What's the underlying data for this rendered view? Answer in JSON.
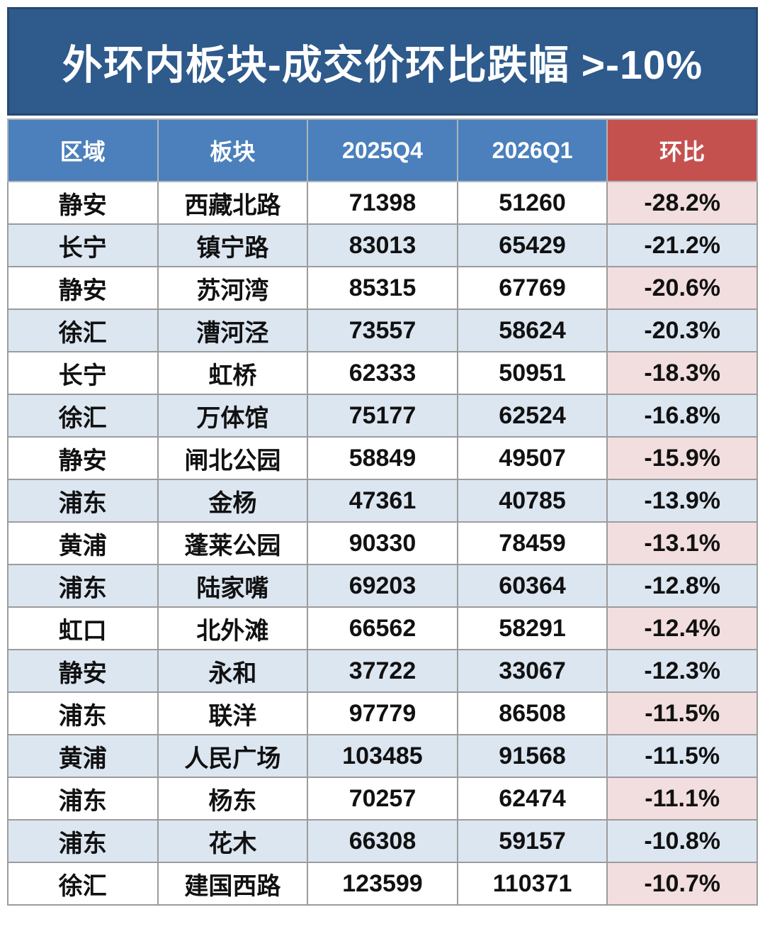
{
  "title": "外环内板块-成交价环比跌幅 >-10%",
  "colors": {
    "title_bg": "#2E5A8C",
    "title_border": "#27496F",
    "header_blue": "#4C80BC",
    "header_red": "#C5514F",
    "row_white": "#FFFFFF",
    "row_alt_blue": "#DCE6F1",
    "qoq_pink": "#F2DEDE",
    "cell_border": "#9C9C9C",
    "text_dark": "#111111",
    "text_white": "#FFFFFF"
  },
  "chart_data": {
    "type": "table",
    "title": "外环内板块-成交价环比跌幅 >-10%",
    "columns": [
      "区域",
      "板块",
      "2025Q4",
      "2026Q1",
      "环比"
    ],
    "rows": [
      [
        "静安",
        "西藏北路",
        "71398",
        "51260",
        "-28.2%"
      ],
      [
        "长宁",
        "镇宁路",
        "83013",
        "65429",
        "-21.2%"
      ],
      [
        "静安",
        "苏河湾",
        "85315",
        "67769",
        "-20.6%"
      ],
      [
        "徐汇",
        "漕河泾",
        "73557",
        "58624",
        "-20.3%"
      ],
      [
        "长宁",
        "虹桥",
        "62333",
        "50951",
        "-18.3%"
      ],
      [
        "徐汇",
        "万体馆",
        "75177",
        "62524",
        "-16.8%"
      ],
      [
        "静安",
        "闸北公园",
        "58849",
        "49507",
        "-15.9%"
      ],
      [
        "浦东",
        "金杨",
        "47361",
        "40785",
        "-13.9%"
      ],
      [
        "黄浦",
        "蓬莱公园",
        "90330",
        "78459",
        "-13.1%"
      ],
      [
        "浦东",
        "陆家嘴",
        "69203",
        "60364",
        "-12.8%"
      ],
      [
        "虹口",
        "北外滩",
        "66562",
        "58291",
        "-12.4%"
      ],
      [
        "静安",
        "永和",
        "37722",
        "33067",
        "-12.3%"
      ],
      [
        "浦东",
        "联洋",
        "97779",
        "86508",
        "-11.5%"
      ],
      [
        "黄浦",
        "人民广场",
        "103485",
        "91568",
        "-11.5%"
      ],
      [
        "浦东",
        "杨东",
        "70257",
        "62474",
        "-11.1%"
      ],
      [
        "浦东",
        "花木",
        "66308",
        "59157",
        "-10.8%"
      ],
      [
        "徐汇",
        "建国西路",
        "123599",
        "110371",
        "-10.7%"
      ]
    ]
  }
}
